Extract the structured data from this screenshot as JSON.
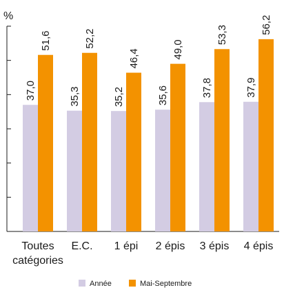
{
  "chart_data": {
    "type": "bar",
    "y_unit": "%",
    "categories": [
      [
        "Toutes",
        "catégories"
      ],
      [
        "E.C."
      ],
      [
        "1 épi"
      ],
      [
        "2 épis"
      ],
      [
        "3 épis"
      ],
      [
        "4 épis"
      ]
    ],
    "series": [
      {
        "name": "Année",
        "color": "#d3cce3",
        "values": [
          37.0,
          35.3,
          35.2,
          35.6,
          37.8,
          37.9
        ],
        "labels": [
          "37,0",
          "35,3",
          "35,2",
          "35,6",
          "37,8",
          "37,9"
        ]
      },
      {
        "name": "Mai-Septembre",
        "color": "#f39200",
        "values": [
          51.6,
          52.2,
          46.4,
          49.0,
          53.3,
          56.2
        ],
        "labels": [
          "51,6",
          "52,2",
          "46,4",
          "49,0",
          "53,3",
          "56,2"
        ]
      }
    ],
    "ylim": [
      0,
      60
    ],
    "y_ticks": [
      0,
      10,
      20,
      30,
      40,
      50,
      60
    ],
    "legend_position": "bottom"
  }
}
